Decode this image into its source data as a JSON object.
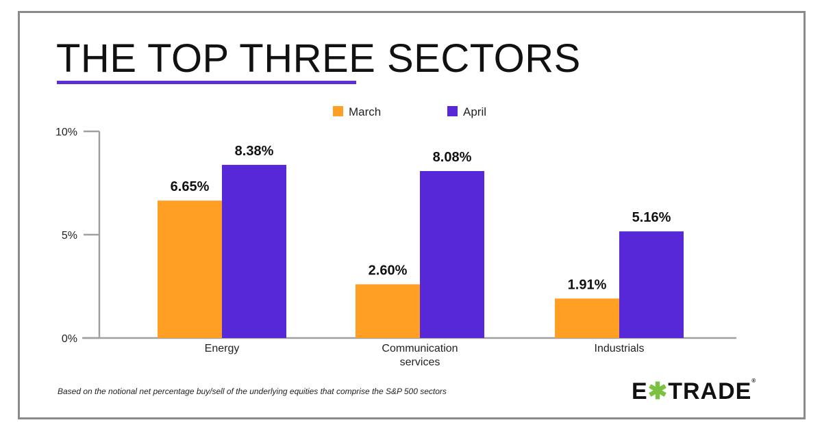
{
  "title": "THE TOP THREE SECTORS",
  "footnote": "Based on the notional net percentage buy/sell of the underlying equities that comprise the S&P 500 sectors",
  "logo": {
    "text": "E*TRADE",
    "left": "E",
    "right": "TRADE",
    "reg": "®"
  },
  "colors": {
    "march": "#ffa024",
    "april": "#5628d8",
    "accent": "#5c2ed6",
    "axis": "#a0a0a0"
  },
  "chart_data": {
    "type": "bar",
    "categories": [
      "Energy",
      "Communication services",
      "Industrials"
    ],
    "category_lines": [
      [
        "Energy"
      ],
      [
        "Communication",
        "services"
      ],
      [
        "Industrials"
      ]
    ],
    "series": [
      {
        "name": "March",
        "values": [
          6.65,
          2.6,
          1.91
        ],
        "labels": [
          "6.65%",
          "2.60%",
          "1.91%"
        ]
      },
      {
        "name": "April",
        "values": [
          8.38,
          8.08,
          5.16
        ],
        "labels": [
          "8.38%",
          "8.08%",
          "5.16%"
        ]
      }
    ],
    "yticks": [
      0,
      5,
      10
    ],
    "ytick_labels": [
      "0%",
      "5%",
      "10%"
    ],
    "ylim": [
      0,
      10
    ],
    "legend": "top-center",
    "grid": false
  }
}
